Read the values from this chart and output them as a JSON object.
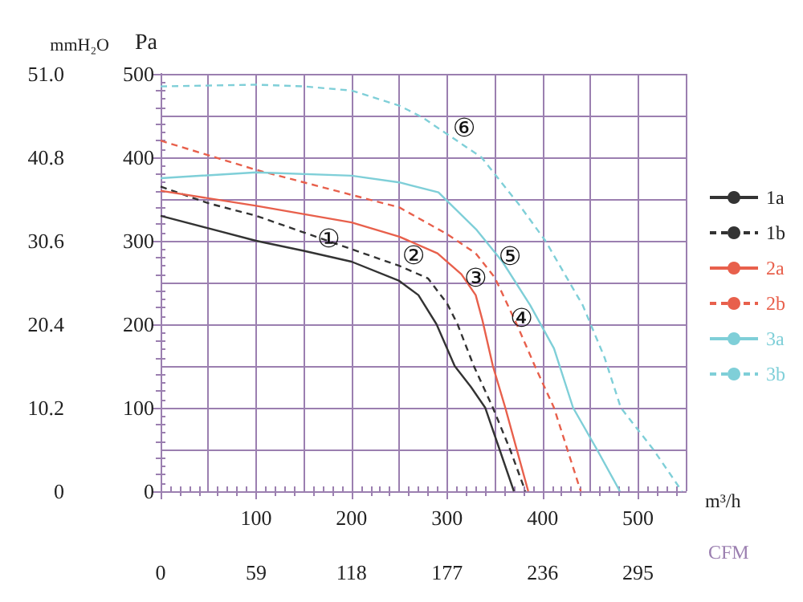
{
  "chart_data": {
    "type": "line",
    "xlabel": "m³/h",
    "ylabel": "Pa",
    "y2label": "mmH₂O",
    "x2label": "CFM",
    "xlim": [
      0,
      550
    ],
    "xticks": [
      {
        "value": 0,
        "label": null
      },
      {
        "value": 50,
        "label": null
      },
      100,
      {
        "value": 150,
        "label": null
      },
      200,
      {
        "value": 250,
        "label": null
      },
      300,
      {
        "value": 350,
        "label": null
      },
      400,
      {
        "value": 450,
        "label": null
      },
      500,
      {
        "value": 550,
        "label": null
      }
    ],
    "ylim": [
      0,
      500
    ],
    "yticks": [
      0,
      {
        "value": 50,
        "label": null
      },
      100,
      {
        "value": 150,
        "label": null
      },
      200,
      {
        "value": 250,
        "label": null
      },
      300,
      {
        "value": 350,
        "label": null
      },
      400,
      {
        "value": 450,
        "label": null
      },
      500
    ],
    "y2lim": [
      0,
      51
    ],
    "y2ticks": [
      0,
      10.2,
      20.4,
      30.6,
      40.8,
      {
        "value": 51,
        "label": "51.0"
      }
    ],
    "x2lim": [
      0,
      324.5
    ],
    "x2ticks": [
      0,
      59,
      118,
      177,
      236,
      295
    ],
    "grid": true,
    "legend": "right",
    "marker": "none",
    "series": [
      {
        "name": "1a",
        "color": "#333333",
        "line_style": "solid",
        "x": [
          0,
          50,
          100,
          150,
          200,
          250,
          270,
          289,
          308,
          325,
          340,
          355,
          370
        ],
        "values": [
          330,
          315,
          300,
          288,
          275,
          252,
          235,
          200,
          150,
          125,
          100,
          50,
          0
        ]
      },
      {
        "name": "1b",
        "color": "#333333",
        "line_style": "dashed",
        "x": [
          0,
          50,
          100,
          150,
          200,
          250,
          280,
          300,
          311,
          328,
          348,
          366,
          382
        ],
        "values": [
          365,
          345,
          330,
          310,
          290,
          270,
          255,
          225,
          200,
          150,
          100,
          50,
          0
        ]
      },
      {
        "name": "2a",
        "color": "#e8604c",
        "line_style": "solid",
        "x": [
          0,
          100,
          200,
          250,
          290,
          315,
          330,
          337,
          348,
          361,
          373,
          385
        ],
        "values": [
          360,
          342,
          322,
          305,
          285,
          260,
          235,
          205,
          150,
          100,
          50,
          0
        ]
      },
      {
        "name": "2b",
        "color": "#e8604c",
        "line_style": "dashed",
        "x": [
          0,
          100,
          200,
          250,
          300,
          330,
          350,
          373,
          392,
          412,
          426,
          440
        ],
        "values": [
          420,
          385,
          355,
          340,
          308,
          285,
          256,
          200,
          150,
          100,
          50,
          0
        ]
      },
      {
        "name": "3a",
        "color": "#7fcfd8",
        "line_style": "solid",
        "x": [
          0,
          100,
          200,
          250,
          291,
          331,
          358,
          387,
          412,
          432,
          457,
          481
        ],
        "values": [
          375,
          382,
          378,
          370,
          358,
          313,
          275,
          223,
          171,
          100,
          50,
          0
        ]
      },
      {
        "name": "3b",
        "color": "#7fcfd8",
        "line_style": "dashed",
        "x": [
          0,
          100,
          150,
          200,
          250,
          274,
          336,
          375,
          403,
          442,
          465,
          482,
          516,
          546
        ],
        "values": [
          485,
          487,
          485,
          480,
          462,
          448,
          400,
          344,
          300,
          223,
          160,
          100,
          50,
          0
        ]
      }
    ],
    "annotations": [
      {
        "text": "①",
        "x": 176,
        "y": 282
      },
      {
        "text": "②",
        "x": 265,
        "y": 262
      },
      {
        "text": "③",
        "x": 330,
        "y": 235
      },
      {
        "text": "④",
        "x": 378,
        "y": 187
      },
      {
        "text": "⑤",
        "x": 366,
        "y": 261
      },
      {
        "text": "⑥",
        "x": 318,
        "y": 414
      }
    ]
  }
}
